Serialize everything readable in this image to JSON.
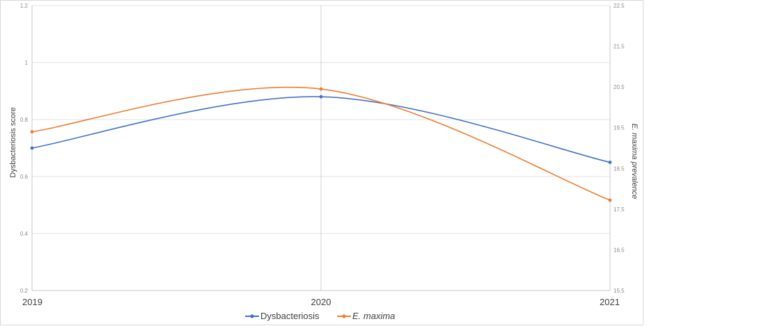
{
  "chart_data": {
    "type": "line",
    "categories": [
      "2019",
      "2020",
      "2021"
    ],
    "series": [
      {
        "name": "Dysbacteriosis",
        "axis": "left",
        "values": [
          0.7,
          0.88,
          0.65
        ],
        "color": "#4472c4"
      },
      {
        "name": "E. maxima",
        "axis": "right",
        "values": [
          19.4,
          20.45,
          17.72
        ],
        "color": "#ed7d31"
      }
    ],
    "ylabel": "Dysbacteriosis score",
    "y2label": "E. maxima prevalence",
    "ylim": [
      0.2,
      1.2
    ],
    "y2lim": [
      15.5,
      22.5
    ],
    "left_ticks": [
      "0.2",
      "0.4",
      "0.6",
      "0.8",
      "1",
      "1.2"
    ],
    "right_ticks": [
      "15.5",
      "16.5",
      "17.5",
      "18.5",
      "19.5",
      "20.5",
      "21.5",
      "22.5"
    ],
    "smooth": true,
    "grid": true,
    "legend_position": "bottom"
  }
}
